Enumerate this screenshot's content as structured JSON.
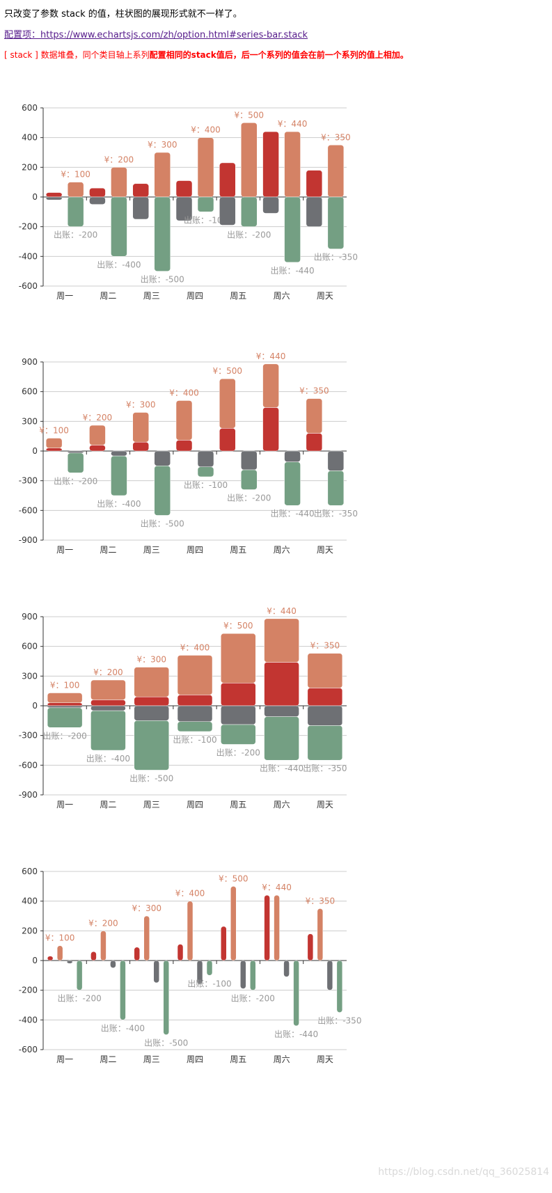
{
  "intro": "只改变了参数 stack 的值，柱状图的展现形式就不一样了。",
  "link": "配置项：https://www.echartsjs.com/zh/option.html#series-bar.stack",
  "note": {
    "lead": "[ stack ] 数据堆叠，同个类目轴上系列",
    "bold": "配置相同的stack值后，后一个系列的值会在前一个系列的值上相加。"
  },
  "watermark": "https://blog.csdn.net/qq_36025814",
  "colors": {
    "red": "#c23531",
    "orange": "#d48265",
    "gray": "#6e7074",
    "green": "#749f83",
    "income_label": "#d48265",
    "expense_label": "#999999"
  },
  "label_prefix": {
    "orange": "¥：",
    "green": "出账："
  },
  "chart_data": [
    {
      "type": "bar",
      "stacking": [
        [
          "red",
          "gray"
        ],
        [
          "orange",
          "green"
        ]
      ],
      "ylim": [
        -600,
        600
      ],
      "yticks": [
        600,
        400,
        200,
        0,
        -200,
        -400,
        -600
      ],
      "grid": true
    },
    {
      "type": "bar",
      "stacking": [
        [
          "red",
          "orange"
        ],
        [
          "gray",
          "green"
        ]
      ],
      "ylim": [
        -900,
        900
      ],
      "yticks": [
        900,
        600,
        300,
        0,
        -300,
        -600,
        -900
      ],
      "grid": true
    },
    {
      "type": "bar",
      "stacking": [
        [
          "red",
          "orange",
          "gray",
          "green"
        ]
      ],
      "ylim": [
        -900,
        900
      ],
      "yticks": [
        900,
        600,
        300,
        0,
        -300,
        -600,
        -900
      ],
      "grid": true
    },
    {
      "type": "bar",
      "stacking": [
        [
          "red"
        ],
        [
          "orange"
        ],
        [
          "gray"
        ],
        [
          "green"
        ]
      ],
      "ylim": [
        -600,
        600
      ],
      "yticks": [
        600,
        400,
        200,
        0,
        -200,
        -400,
        -600
      ],
      "grid": true
    }
  ],
  "categories": [
    "周一",
    "周二",
    "周三",
    "周四",
    "周五",
    "周六",
    "周天"
  ],
  "series": {
    "red": [
      30,
      60,
      90,
      110,
      230,
      440,
      180
    ],
    "gray": [
      -20,
      -50,
      -150,
      -160,
      -190,
      -110,
      -200
    ],
    "orange": [
      100,
      200,
      300,
      400,
      500,
      440,
      350
    ],
    "green": [
      -200,
      -400,
      -500,
      -100,
      -200,
      -440,
      -350
    ]
  }
}
